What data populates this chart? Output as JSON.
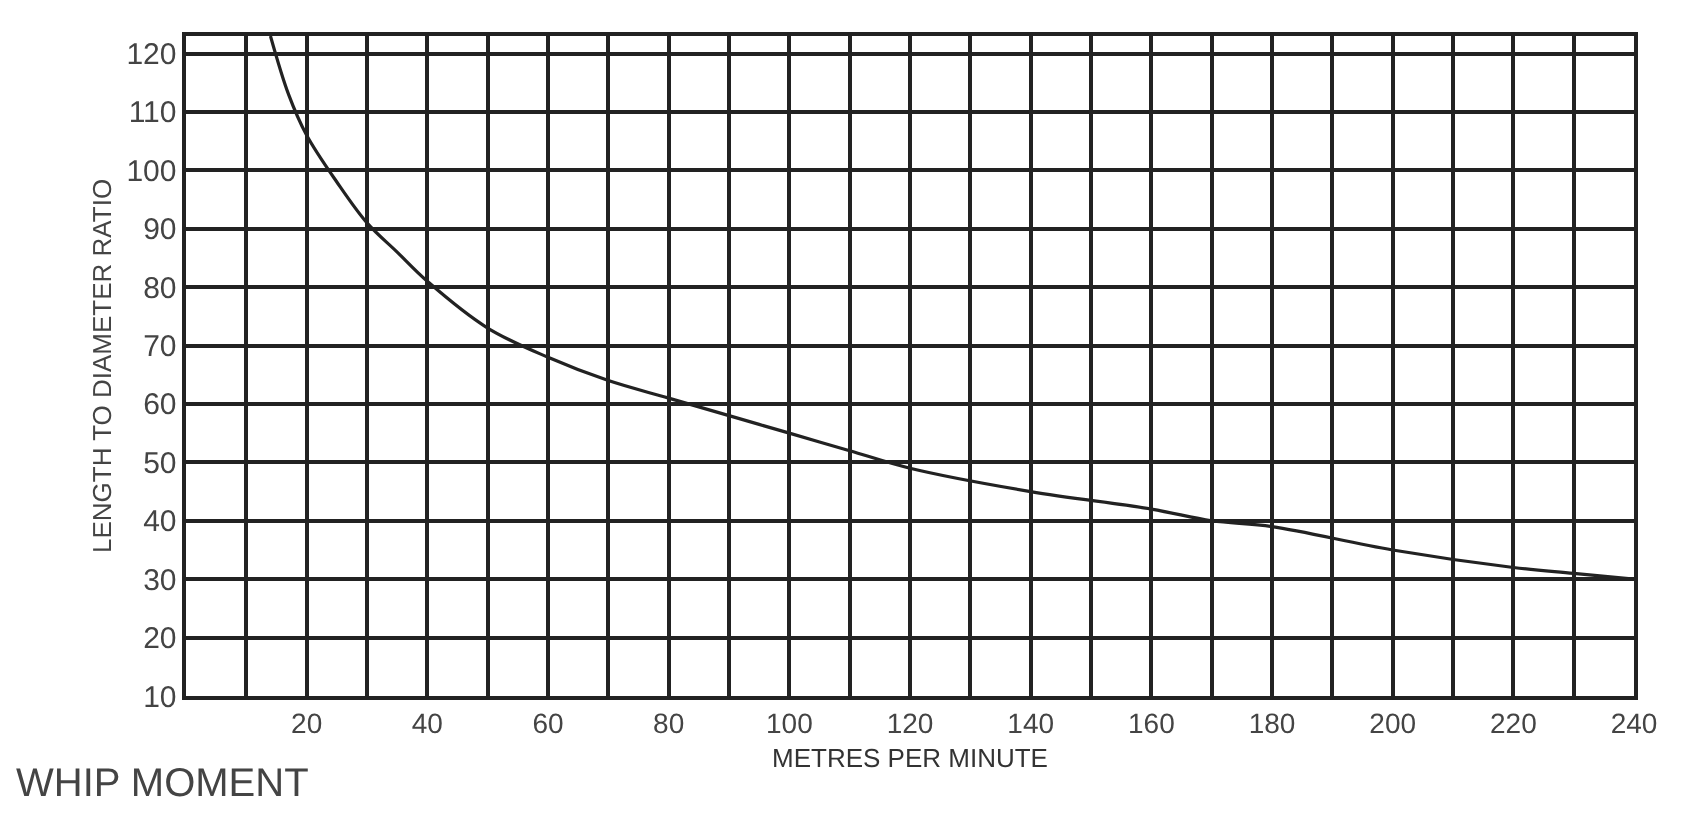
{
  "chart_data": {
    "type": "line",
    "title": "WHIP MOMENT",
    "xlabel": "METRES PER MINUTE",
    "ylabel": "LENGTH TO DIAMETER RATIO",
    "x": [
      14,
      17,
      20,
      25,
      30,
      35,
      40,
      50,
      60,
      70,
      80,
      90,
      100,
      110,
      120,
      140,
      160,
      170,
      180,
      200,
      220,
      230,
      240
    ],
    "series": [
      {
        "color": "#222222",
        "values": [
          123,
          113,
          106,
          98,
          91,
          86,
          81,
          73,
          68,
          64,
          61,
          58,
          55,
          52,
          49,
          45,
          42,
          40,
          39,
          35,
          32,
          31,
          30
        ]
      }
    ],
    "xlim": [
      0,
      240
    ],
    "ylim": [
      10,
      123
    ],
    "xticks": [
      {
        "value": 10,
        "label": null
      },
      20,
      {
        "value": 30,
        "label": null
      },
      40,
      {
        "value": 50,
        "label": null
      },
      60,
      {
        "value": 70,
        "label": null
      },
      80,
      {
        "value": 90,
        "label": null
      },
      100,
      {
        "value": 110,
        "label": null
      },
      120,
      {
        "value": 130,
        "label": null
      },
      140,
      {
        "value": 150,
        "label": null
      },
      160,
      {
        "value": 170,
        "label": null
      },
      180,
      {
        "value": 190,
        "label": null
      },
      200,
      {
        "value": 210,
        "label": null
      },
      220,
      {
        "value": 230,
        "label": null
      },
      240
    ],
    "yticks": [
      10,
      20,
      30,
      40,
      50,
      60,
      70,
      80,
      90,
      100,
      110,
      120
    ],
    "grid": true,
    "marker": "none",
    "line_style": "solid"
  }
}
